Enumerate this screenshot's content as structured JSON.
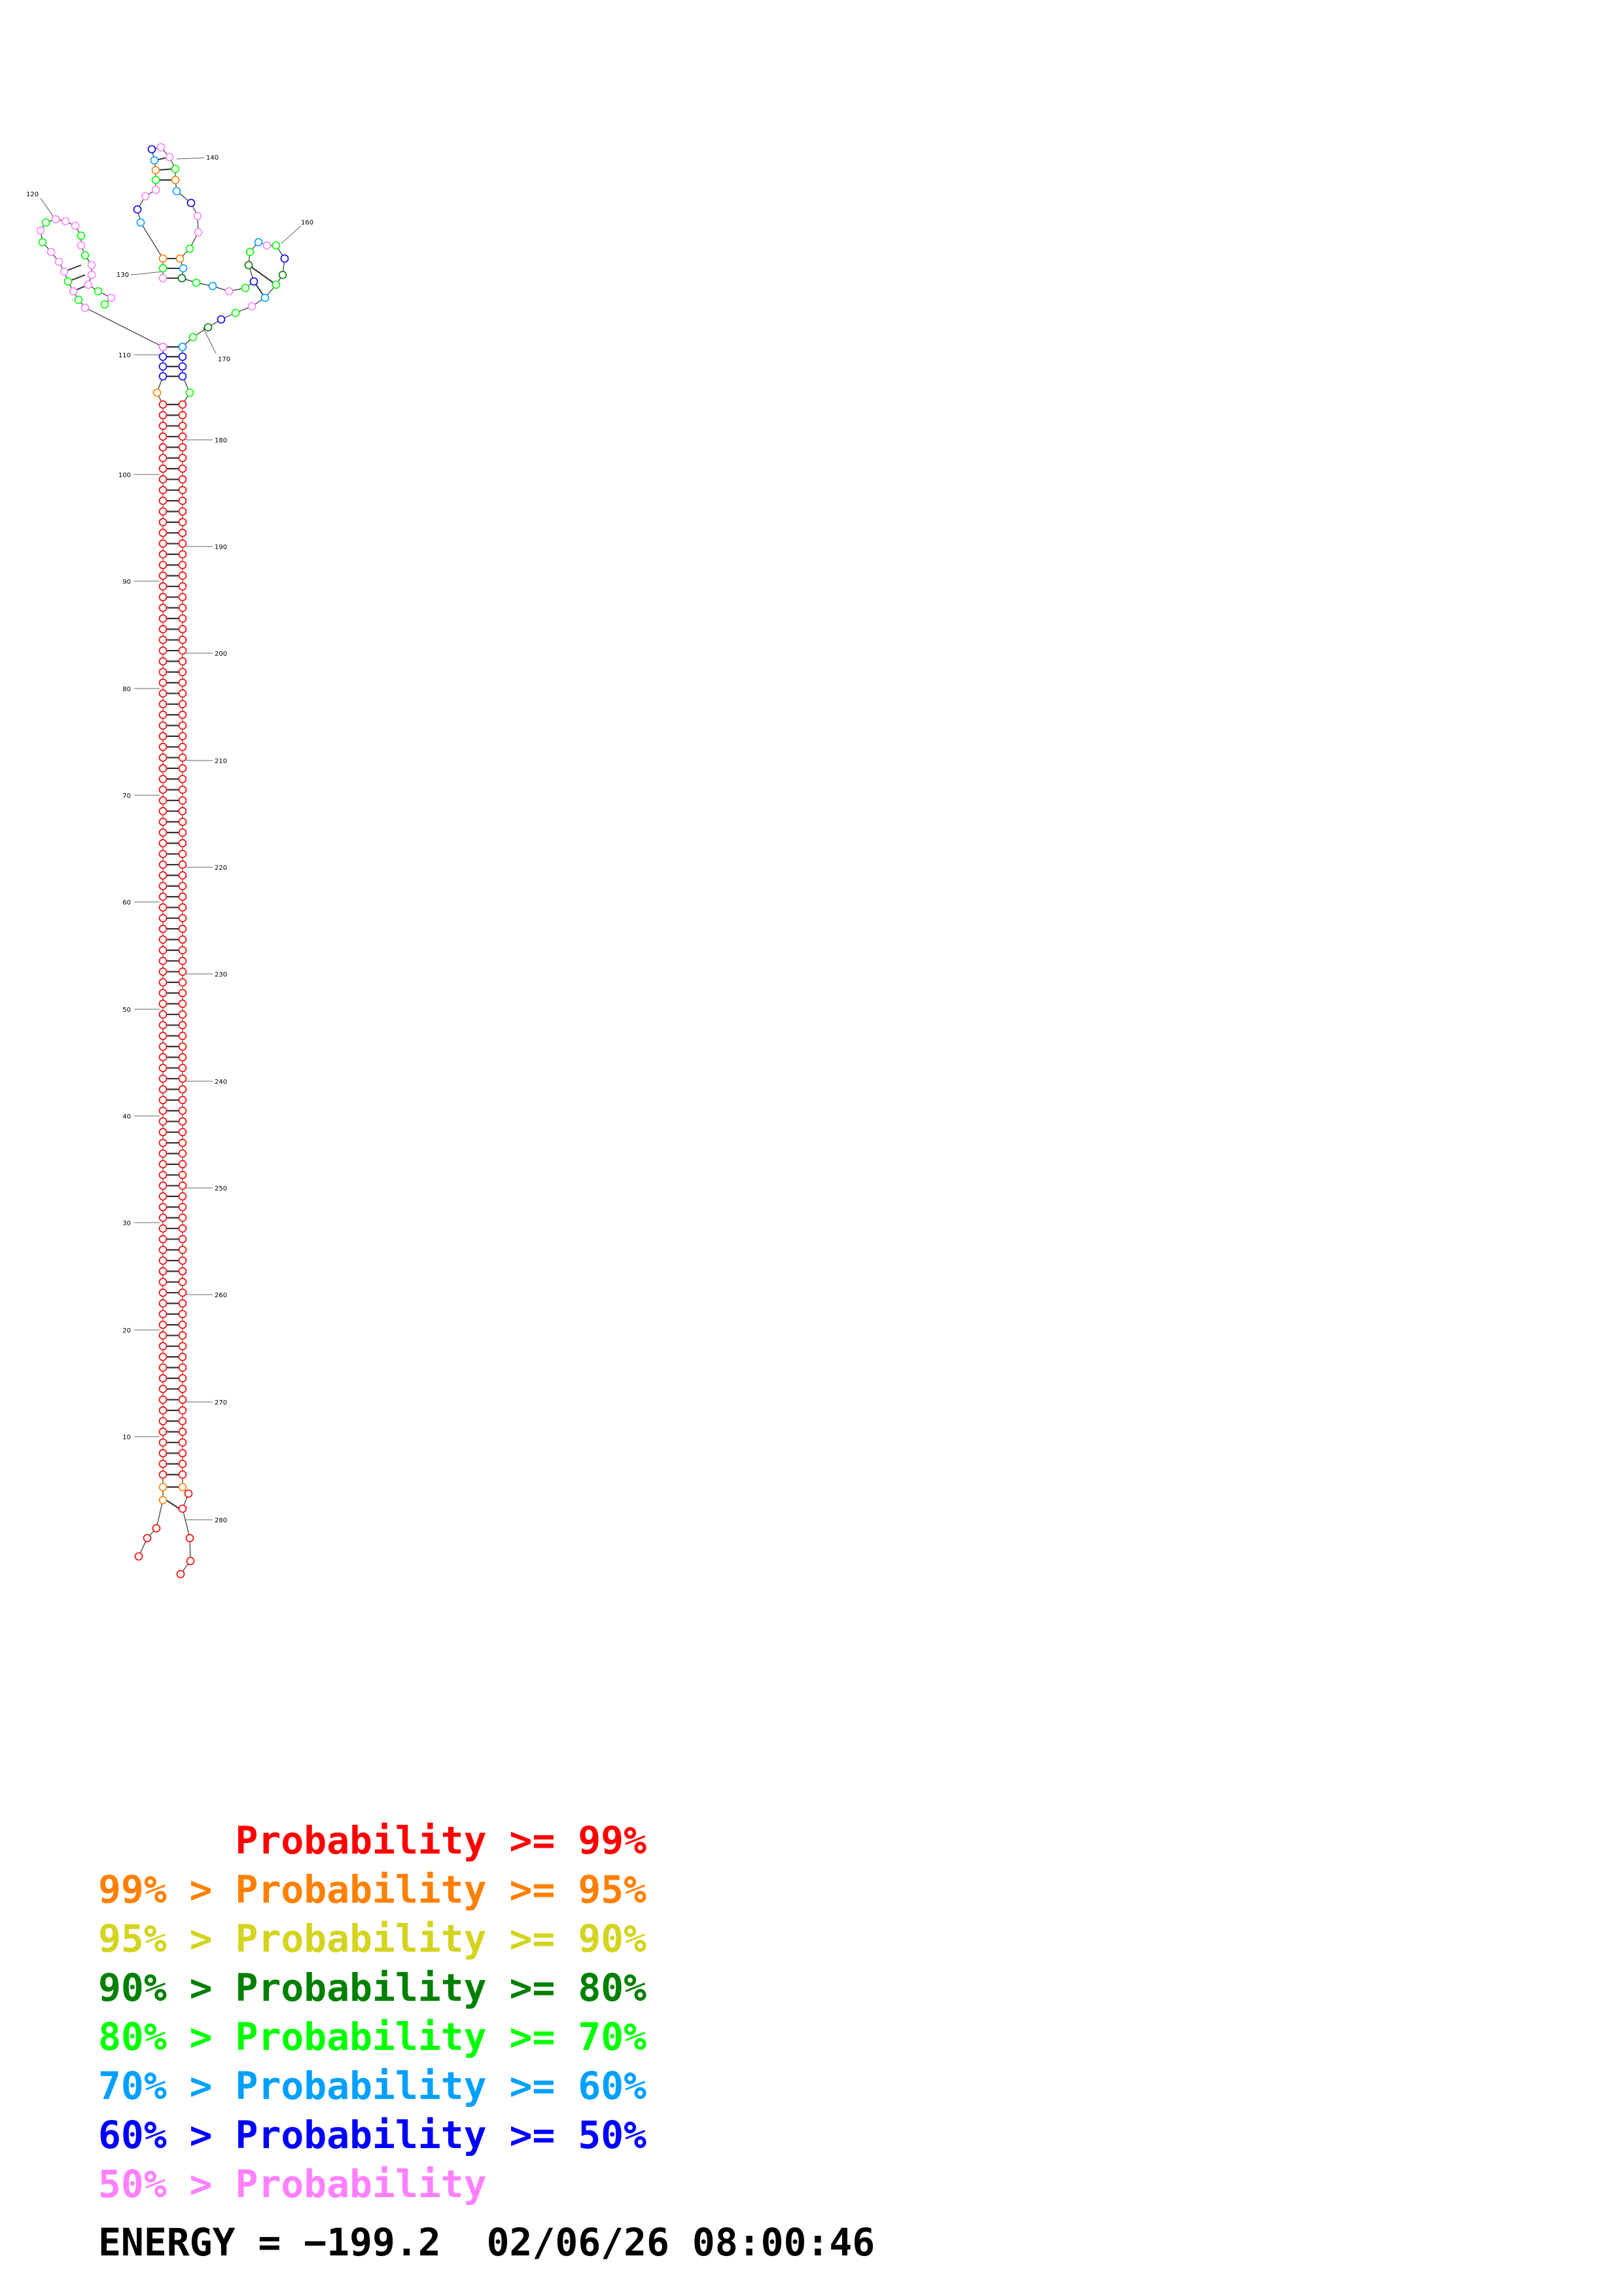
{
  "structure": {
    "type": "rna-secondary-structure",
    "sequence_length": 288,
    "position_labels": [
      "10",
      "20",
      "30",
      "40",
      "50",
      "60",
      "70",
      "80",
      "90",
      "100",
      "110",
      "120",
      "130",
      "140",
      "160",
      "170",
      "180",
      "190",
      "200",
      "210",
      "220",
      "230",
      "240",
      "250",
      "260",
      "270",
      "280"
    ],
    "probability_colors": {
      "p99": "#ff0000",
      "p95": "#ff8000",
      "p90": "#d4d420",
      "p80": "#008000",
      "p70": "#00ff00",
      "p60": "#00a0ff",
      "p50": "#0000ff",
      "below50": "#ff80ff"
    }
  },
  "legend": [
    {
      "prefix": "",
      "prefix_pad": "   ",
      "label": "Probability",
      "op": ">=",
      "value": "99%",
      "color": "#ff0000"
    },
    {
      "prefix": "99%",
      "prefix_pad": "",
      "label": "Probability",
      "op": ">=",
      "value": "95%",
      "color": "#ff8000"
    },
    {
      "prefix": "95%",
      "prefix_pad": "",
      "label": "Probability",
      "op": ">=",
      "value": "90%",
      "color": "#d4d420"
    },
    {
      "prefix": "90%",
      "prefix_pad": "",
      "label": "Probability",
      "op": ">=",
      "value": "80%",
      "color": "#008000"
    },
    {
      "prefix": "80%",
      "prefix_pad": "",
      "label": "Probability",
      "op": ">=",
      "value": "70%",
      "color": "#00ff00"
    },
    {
      "prefix": "70%",
      "prefix_pad": "",
      "label": "Probability",
      "op": ">=",
      "value": "60%",
      "color": "#00a0ff"
    },
    {
      "prefix": "60%",
      "prefix_pad": "",
      "label": "Probability",
      "op": ">=",
      "value": "50%",
      "color": "#0000ff"
    },
    {
      "prefix": "50%",
      "prefix_pad": "",
      "label": "Probability",
      "op": "",
      "value": "",
      "color": "#ff80ff"
    }
  ],
  "footer": {
    "energy_label": "ENERGY =",
    "energy_value": "−199.2",
    "timestamp": "02/06/26 08:00:46"
  }
}
